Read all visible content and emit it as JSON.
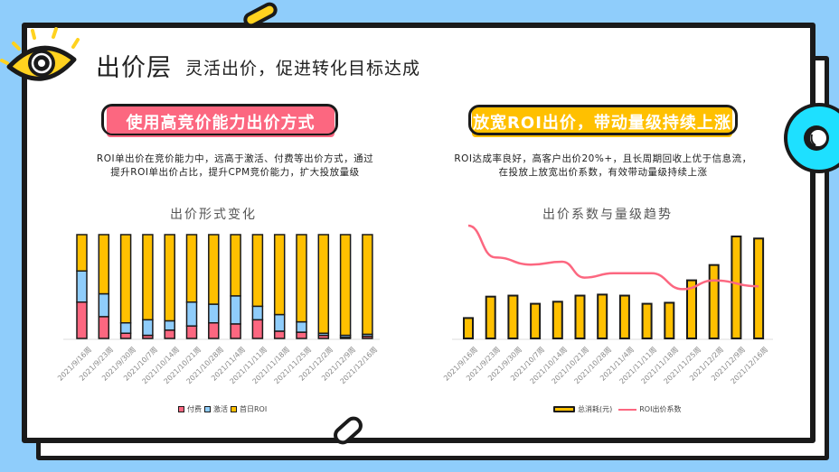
{
  "header": {
    "title": "出价层",
    "subtitle": "灵活出价，促进转化目标达成"
  },
  "left_panel": {
    "banner": "使用高竞价能力出价方式",
    "description_line1": "ROI单出价在竞价能力中，远高于激活、付费等出价方式，通过",
    "description_line2": "提升ROI单出价占比，提升CPM竞价能力，扩大投放量级",
    "chart_title": "出价形式变化",
    "legend": [
      {
        "label": "付费",
        "color": "#fc6780"
      },
      {
        "label": "激活",
        "color": "#8fcdfb"
      },
      {
        "label": "首日ROI",
        "color": "#ffc000"
      }
    ]
  },
  "right_panel": {
    "banner": "放宽ROI出价，带动量级持续上涨",
    "description_line1": "ROI达成率良好，高客户出价20%+，且长周期回收上优于信息流，",
    "description_line2": "在投放上放宽出价系数，有效带动量级持续上涨",
    "chart_title": "出价系数与量级趋势",
    "legend": [
      {
        "label": "总消耗(元)",
        "color": "#ffc000"
      },
      {
        "label": "ROI出价系数",
        "color": "#fc6780"
      }
    ]
  },
  "chart_data": [
    {
      "type": "bar",
      "stacked": true,
      "percent": true,
      "title": "出价形式变化",
      "categories": [
        "2021/9/16周",
        "2021/9/23周",
        "2021/9/30周",
        "2021/10/7周",
        "2021/10/14周",
        "2021/10/21周",
        "2021/10/28周",
        "2021/11/4周",
        "2021/11/11周",
        "2021/11/18周",
        "2021/11/25周",
        "2021/12/2周",
        "2021/12/9周",
        "2021/12/16周"
      ],
      "series": [
        {
          "name": "付费",
          "color": "#fc6780",
          "values": [
            35,
            21,
            5,
            3,
            8,
            12,
            15,
            14,
            18,
            7,
            6,
            3,
            1,
            2
          ]
        },
        {
          "name": "激活",
          "color": "#8fcdfb",
          "values": [
            30,
            22,
            10,
            15,
            9,
            23,
            18,
            27,
            13,
            16,
            10,
            2,
            2,
            2
          ]
        },
        {
          "name": "首日ROI",
          "color": "#ffc000",
          "values": [
            35,
            57,
            85,
            82,
            83,
            65,
            67,
            59,
            69,
            77,
            84,
            95,
            97,
            96
          ]
        }
      ],
      "ylim": [
        0,
        100
      ],
      "grid": false,
      "legend_position": "bottom"
    },
    {
      "type": "bar+line",
      "title": "出价系数与量级趋势",
      "categories": [
        "2021/9/16周",
        "2021/9/23周",
        "2021/9/30周",
        "2021/10/7周",
        "2021/10/14周",
        "2021/10/21周",
        "2021/10/28周",
        "2021/11/4周",
        "2021/11/11周",
        "2021/11/18周",
        "2021/11/25周",
        "2021/12/2周",
        "2021/12/9周",
        "2021/12/16周"
      ],
      "series": [
        {
          "name": "总消耗(元)",
          "type": "bar",
          "color": "#ffc000",
          "values": [
            20,
            41,
            42,
            34,
            36,
            42,
            43,
            42,
            34,
            35,
            57,
            72,
            100,
            98
          ]
        },
        {
          "name": "ROI出价系数",
          "type": "line",
          "color": "#fc6780",
          "values": [
            100,
            78,
            73,
            75,
            64,
            67,
            67,
            56,
            62,
            58
          ]
        }
      ],
      "line_x": [
        0,
        1.2,
        2.8,
        4.2,
        5.2,
        6.5,
        8.2,
        9.6,
        11.0,
        13.0
      ],
      "ylim": [
        0,
        100
      ],
      "grid": false,
      "legend_position": "bottom"
    }
  ]
}
